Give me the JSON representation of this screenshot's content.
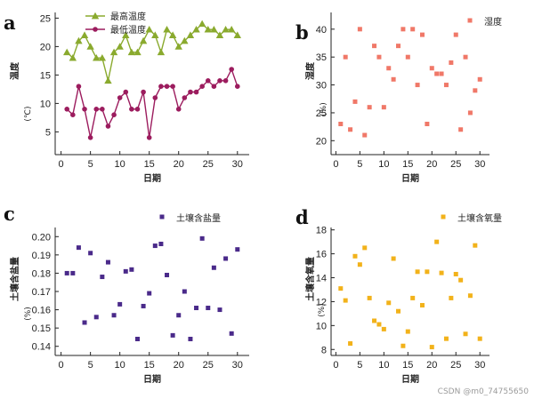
{
  "watermark": "CSDN @m0_74755650",
  "chart_data": [
    {
      "type": "line",
      "panel_letter": "a",
      "xlabel": "日期",
      "ylabel": "温度",
      "yunit": "(℃)",
      "xlim": [
        -1,
        32
      ],
      "ylim": [
        1,
        26
      ],
      "xticks": [
        0,
        5,
        10,
        15,
        20,
        25,
        30
      ],
      "yticks": [
        5,
        10,
        15,
        20,
        25
      ],
      "legend_position": "top-right",
      "series": [
        {
          "name": "最高温度",
          "color": "#8aaa2e",
          "marker": "triangle",
          "x": [
            1,
            2,
            3,
            4,
            5,
            6,
            7,
            8,
            9,
            10,
            11,
            12,
            13,
            14,
            15,
            16,
            17,
            18,
            19,
            20,
            21,
            22,
            23,
            24,
            25,
            26,
            27,
            28,
            29,
            30
          ],
          "y": [
            19,
            18,
            21,
            22,
            20,
            18,
            18,
            14,
            19,
            20,
            22,
            19,
            19,
            21,
            23,
            22,
            19,
            23,
            22,
            20,
            21,
            22,
            23,
            24,
            23,
            23,
            22,
            23,
            23,
            22
          ]
        },
        {
          "name": "最低温度",
          "color": "#9c1c5e",
          "marker": "circle",
          "x": [
            1,
            2,
            3,
            4,
            5,
            6,
            7,
            8,
            9,
            10,
            11,
            12,
            13,
            14,
            15,
            16,
            17,
            18,
            19,
            20,
            21,
            22,
            23,
            24,
            25,
            26,
            27,
            28,
            29,
            30
          ],
          "y": [
            9,
            8,
            13,
            9,
            4,
            9,
            9,
            6,
            8,
            11,
            12,
            9,
            9,
            12,
            4,
            11,
            13,
            13,
            13,
            9,
            11,
            12,
            12,
            13,
            14,
            13,
            14,
            14,
            16,
            13
          ]
        }
      ]
    },
    {
      "type": "scatter",
      "panel_letter": "b",
      "xlabel": "日期",
      "ylabel": "湿度",
      "yunit": "(%)",
      "xlim": [
        -1,
        32
      ],
      "ylim": [
        17.5,
        43
      ],
      "xticks": [
        0,
        5,
        10,
        15,
        20,
        25,
        30
      ],
      "yticks": [
        20,
        25,
        30,
        35,
        40
      ],
      "legend_position": "top-right",
      "series": [
        {
          "name": "湿度",
          "color": "#f07868",
          "marker": "square",
          "x": [
            1,
            2,
            3,
            4,
            5,
            6,
            7,
            8,
            9,
            10,
            11,
            12,
            13,
            14,
            15,
            16,
            17,
            18,
            19,
            20,
            21,
            22,
            23,
            24,
            25,
            26,
            27,
            28,
            29,
            30
          ],
          "y": [
            23,
            35,
            22,
            27,
            40,
            21,
            26,
            37,
            35,
            26,
            33,
            31,
            37,
            40,
            35,
            40,
            30,
            39,
            23,
            33,
            32,
            32,
            30,
            34,
            39,
            22,
            35,
            25,
            29,
            31
          ]
        }
      ]
    },
    {
      "type": "scatter",
      "panel_letter": "c",
      "xlabel": "日期",
      "ylabel": "土壤含盐量",
      "yunit": "(%)",
      "xlim": [
        -1,
        32
      ],
      "ylim": [
        0.135,
        0.205
      ],
      "xticks": [
        0,
        5,
        10,
        15,
        20,
        25,
        30
      ],
      "yticks": [
        0.14,
        0.15,
        0.16,
        0.17,
        0.18,
        0.19,
        0.2
      ],
      "ytick_decimals": 2,
      "legend_position": "top-right",
      "series": [
        {
          "name": "土壤含盐量",
          "color": "#4a2a8a",
          "marker": "square",
          "x": [
            1,
            2,
            3,
            4,
            5,
            6,
            7,
            8,
            9,
            10,
            11,
            12,
            13,
            14,
            15,
            16,
            17,
            18,
            19,
            20,
            21,
            22,
            23,
            24,
            25,
            26,
            27,
            28,
            29,
            30
          ],
          "y": [
            0.18,
            0.18,
            0.194,
            0.153,
            0.191,
            0.156,
            0.178,
            0.186,
            0.157,
            0.163,
            0.181,
            0.182,
            0.144,
            0.162,
            0.169,
            0.195,
            0.196,
            0.179,
            0.146,
            0.157,
            0.17,
            0.144,
            0.161,
            0.199,
            0.161,
            0.183,
            0.16,
            0.188,
            0.147,
            0.193
          ]
        }
      ]
    },
    {
      "type": "scatter",
      "panel_letter": "d",
      "xlabel": "日期",
      "ylabel": "土壤含氧量",
      "yunit": "(%)",
      "xlim": [
        -1,
        32
      ],
      "ylim": [
        7.5,
        18.2
      ],
      "xticks": [
        0,
        5,
        10,
        15,
        20,
        25,
        30
      ],
      "yticks": [
        8,
        10,
        12,
        14,
        16,
        18
      ],
      "legend_position": "top-right",
      "series": [
        {
          "name": "土壤含氧量",
          "color": "#f2b21a",
          "marker": "square",
          "x": [
            1,
            2,
            3,
            4,
            5,
            6,
            7,
            8,
            9,
            10,
            11,
            12,
            13,
            14,
            15,
            16,
            17,
            18,
            19,
            20,
            21,
            22,
            23,
            24,
            25,
            26,
            27,
            28,
            29,
            30
          ],
          "y": [
            13.1,
            12.1,
            8.5,
            15.8,
            15.1,
            16.5,
            12.3,
            10.4,
            10.1,
            9.7,
            11.9,
            15.6,
            11.2,
            8.3,
            9.5,
            12.3,
            14.5,
            11.7,
            14.5,
            8.2,
            17.0,
            14.4,
            8.9,
            12.3,
            14.3,
            13.8,
            9.3,
            12.5,
            16.7,
            8.9
          ]
        }
      ]
    }
  ]
}
